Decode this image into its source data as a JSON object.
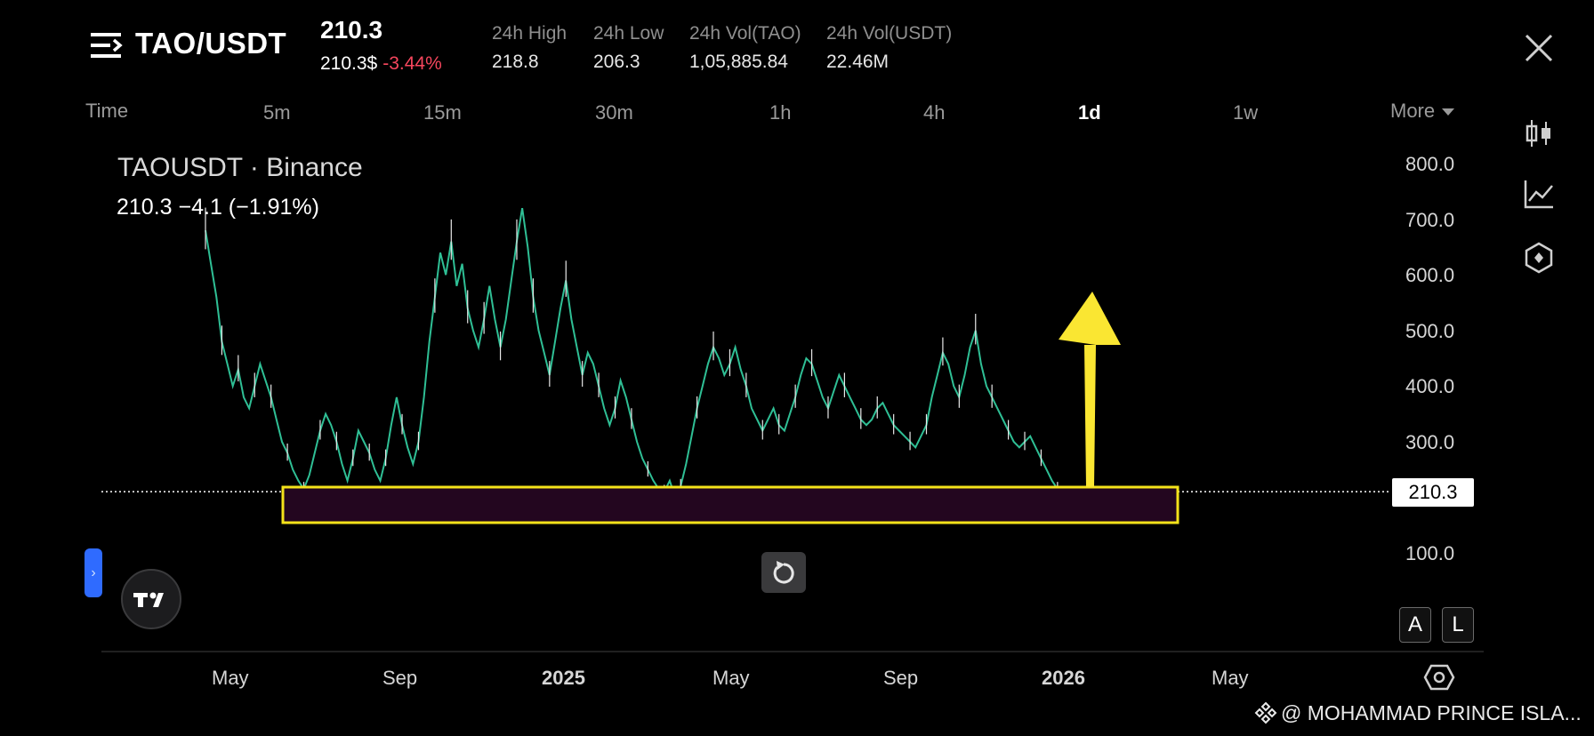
{
  "header": {
    "pair": "TAO/USDT",
    "last_price": "210.3",
    "last_price_usd": "210.3$",
    "change_pct": "-3.44%",
    "stats": [
      {
        "label": "24h High",
        "value": "218.8"
      },
      {
        "label": "24h Low",
        "value": "206.3"
      },
      {
        "label": "24h Vol(TAO)",
        "value": "1,05,885.84"
      },
      {
        "label": "24h Vol(USDT)",
        "value": "22.46M"
      }
    ]
  },
  "timeframes": {
    "items": [
      "Time",
      "5m",
      "15m",
      "30m",
      "1h",
      "4h",
      "1d",
      "1w"
    ],
    "active": "1d",
    "more_label": "More"
  },
  "legend": {
    "symbol_line": "TAOUSDT · Binance",
    "change_line": "210.3  −4.1 (−1.91%)"
  },
  "chart_data": {
    "type": "line",
    "yticks": [
      "800.0",
      "700.0",
      "600.0",
      "500.0",
      "400.0",
      "300.0",
      "100.0"
    ],
    "ytick_values": [
      800,
      700,
      600,
      500,
      400,
      300,
      100
    ],
    "xticks": [
      {
        "label": "May",
        "bold": false
      },
      {
        "label": "Sep",
        "bold": false
      },
      {
        "label": "2025",
        "bold": true
      },
      {
        "label": "May",
        "bold": false
      },
      {
        "label": "Sep",
        "bold": false
      },
      {
        "label": "2026",
        "bold": true
      },
      {
        "label": "May",
        "bold": false
      }
    ],
    "current_price": 210.3,
    "current_price_label": "210.3",
    "series_points": [
      [
        0,
        680
      ],
      [
        2,
        620
      ],
      [
        4,
        560
      ],
      [
        6,
        480
      ],
      [
        8,
        440
      ],
      [
        10,
        400
      ],
      [
        12,
        430
      ],
      [
        14,
        380
      ],
      [
        16,
        360
      ],
      [
        18,
        400
      ],
      [
        20,
        440
      ],
      [
        22,
        410
      ],
      [
        24,
        380
      ],
      [
        26,
        340
      ],
      [
        28,
        300
      ],
      [
        30,
        280
      ],
      [
        32,
        250
      ],
      [
        34,
        230
      ],
      [
        36,
        215
      ],
      [
        38,
        240
      ],
      [
        40,
        280
      ],
      [
        42,
        320
      ],
      [
        44,
        350
      ],
      [
        46,
        330
      ],
      [
        48,
        300
      ],
      [
        50,
        260
      ],
      [
        52,
        230
      ],
      [
        54,
        270
      ],
      [
        56,
        320
      ],
      [
        58,
        300
      ],
      [
        60,
        280
      ],
      [
        62,
        250
      ],
      [
        64,
        230
      ],
      [
        66,
        270
      ],
      [
        68,
        330
      ],
      [
        70,
        380
      ],
      [
        72,
        330
      ],
      [
        74,
        290
      ],
      [
        76,
        260
      ],
      [
        78,
        300
      ],
      [
        80,
        380
      ],
      [
        82,
        480
      ],
      [
        84,
        560
      ],
      [
        86,
        640
      ],
      [
        88,
        600
      ],
      [
        90,
        660
      ],
      [
        92,
        580
      ],
      [
        94,
        620
      ],
      [
        96,
        540
      ],
      [
        98,
        500
      ],
      [
        100,
        470
      ],
      [
        102,
        520
      ],
      [
        104,
        580
      ],
      [
        106,
        520
      ],
      [
        108,
        470
      ],
      [
        110,
        520
      ],
      [
        112,
        590
      ],
      [
        114,
        660
      ],
      [
        116,
        720
      ],
      [
        118,
        650
      ],
      [
        120,
        560
      ],
      [
        122,
        500
      ],
      [
        124,
        460
      ],
      [
        126,
        420
      ],
      [
        128,
        480
      ],
      [
        130,
        540
      ],
      [
        132,
        590
      ],
      [
        134,
        520
      ],
      [
        136,
        470
      ],
      [
        138,
        420
      ],
      [
        140,
        460
      ],
      [
        142,
        440
      ],
      [
        144,
        400
      ],
      [
        146,
        360
      ],
      [
        148,
        330
      ],
      [
        150,
        360
      ],
      [
        152,
        410
      ],
      [
        154,
        380
      ],
      [
        156,
        340
      ],
      [
        158,
        300
      ],
      [
        160,
        270
      ],
      [
        162,
        250
      ],
      [
        164,
        230
      ],
      [
        166,
        215
      ],
      [
        168,
        210
      ],
      [
        170,
        230
      ],
      [
        172,
        200
      ],
      [
        174,
        220
      ],
      [
        176,
        260
      ],
      [
        178,
        310
      ],
      [
        180,
        360
      ],
      [
        182,
        400
      ],
      [
        184,
        440
      ],
      [
        186,
        470
      ],
      [
        188,
        450
      ],
      [
        190,
        420
      ],
      [
        192,
        440
      ],
      [
        194,
        470
      ],
      [
        196,
        430
      ],
      [
        198,
        400
      ],
      [
        200,
        360
      ],
      [
        202,
        340
      ],
      [
        204,
        320
      ],
      [
        206,
        340
      ],
      [
        208,
        360
      ],
      [
        210,
        330
      ],
      [
        212,
        320
      ],
      [
        214,
        350
      ],
      [
        216,
        380
      ],
      [
        218,
        420
      ],
      [
        220,
        450
      ],
      [
        222,
        440
      ],
      [
        224,
        410
      ],
      [
        226,
        380
      ],
      [
        228,
        360
      ],
      [
        230,
        390
      ],
      [
        232,
        420
      ],
      [
        234,
        400
      ],
      [
        236,
        380
      ],
      [
        238,
        360
      ],
      [
        240,
        340
      ],
      [
        242,
        330
      ],
      [
        244,
        340
      ],
      [
        246,
        360
      ],
      [
        248,
        370
      ],
      [
        250,
        350
      ],
      [
        252,
        330
      ],
      [
        254,
        320
      ],
      [
        256,
        310
      ],
      [
        258,
        300
      ],
      [
        260,
        290
      ],
      [
        262,
        310
      ],
      [
        264,
        330
      ],
      [
        266,
        380
      ],
      [
        268,
        420
      ],
      [
        270,
        460
      ],
      [
        272,
        440
      ],
      [
        274,
        400
      ],
      [
        276,
        380
      ],
      [
        278,
        420
      ],
      [
        280,
        470
      ],
      [
        282,
        500
      ],
      [
        284,
        440
      ],
      [
        286,
        400
      ],
      [
        288,
        380
      ],
      [
        290,
        360
      ],
      [
        292,
        340
      ],
      [
        294,
        320
      ],
      [
        296,
        300
      ],
      [
        298,
        290
      ],
      [
        300,
        300
      ],
      [
        302,
        310
      ],
      [
        304,
        290
      ],
      [
        306,
        270
      ],
      [
        308,
        250
      ],
      [
        310,
        230
      ],
      [
        312,
        215
      ],
      [
        314,
        210
      ]
    ]
  },
  "controls": {
    "a_label": "A",
    "l_label": "L",
    "side_tab_glyph": "›"
  },
  "watermark": "@ MOHAMMAD PRINCE ISLA..."
}
